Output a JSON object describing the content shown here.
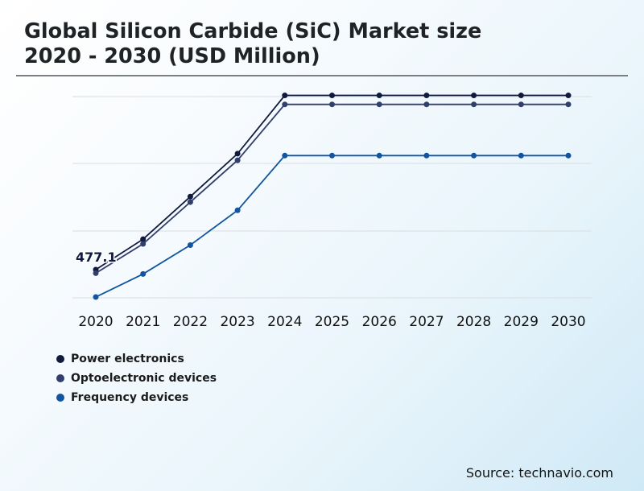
{
  "title_line1": "Global Silicon Carbide (SiC) Market size",
  "title_line2": "2020 - 2030 (USD Million)",
  "source": "Source: technavio.com",
  "chart_data": {
    "type": "line",
    "title": "Global Silicon Carbide (SiC) Market size 2020 - 2030 (USD Million)",
    "x": [
      "2020",
      "2021",
      "2022",
      "2023",
      "2024",
      "2025",
      "2026",
      "2027",
      "2028",
      "2029",
      "2030"
    ],
    "series": [
      {
        "name": "Power electronics",
        "color": "#0f1a3c",
        "values": [
          477.1,
          555,
          664,
          774,
          923,
          923,
          923,
          923,
          923,
          923,
          923
        ]
      },
      {
        "name": "Optoelectronic devices",
        "color": "#323f6c",
        "values": [
          468,
          543,
          650,
          757,
          900,
          900,
          900,
          900,
          900,
          900,
          900
        ]
      },
      {
        "name": "Frequency devices",
        "color": "#1155a0",
        "values": [
          407,
          466,
          540,
          629,
          769,
          769,
          769,
          769,
          769,
          769,
          769
        ]
      }
    ],
    "annotations": [
      {
        "series": 0,
        "x": "2020",
        "text": "477.1"
      }
    ],
    "ylim": [
      405,
      920
    ],
    "grid": true,
    "legend": "bottom-left"
  }
}
